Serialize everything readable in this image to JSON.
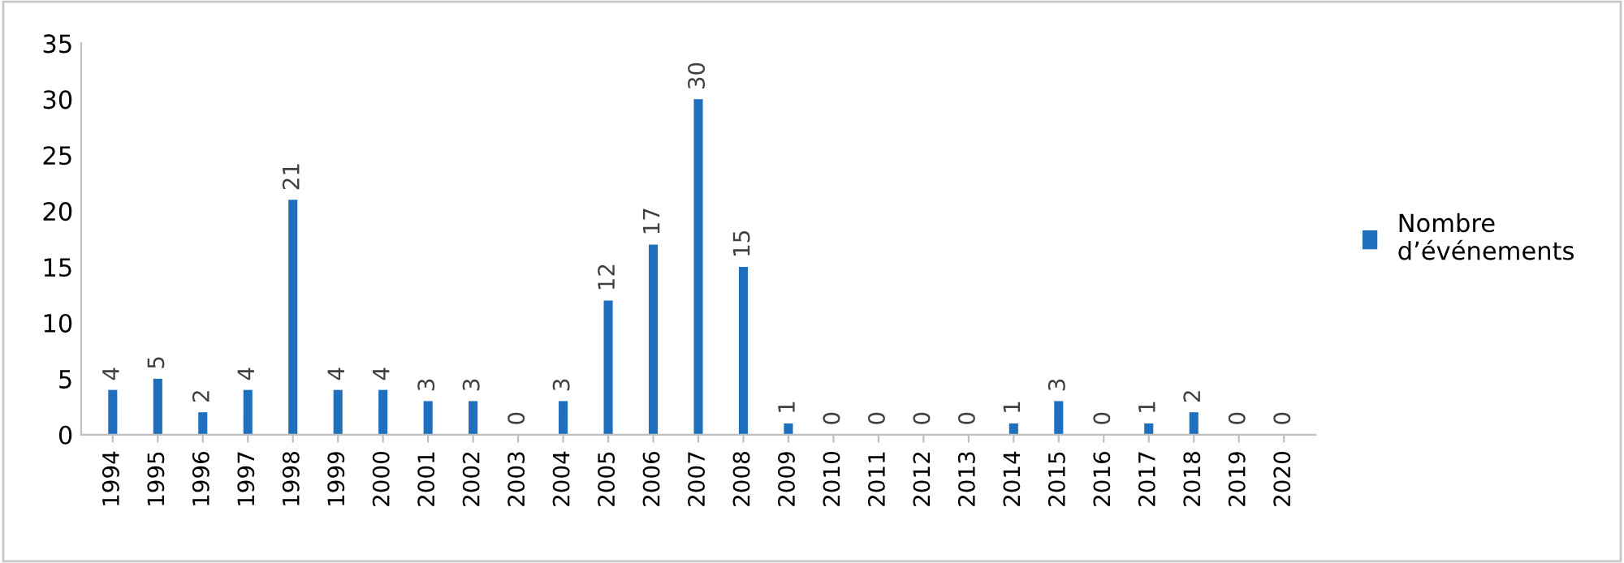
{
  "chart_data": {
    "type": "bar",
    "categories": [
      "1994",
      "1995",
      "1996",
      "1997",
      "1998",
      "1999",
      "2000",
      "2001",
      "2002",
      "2003",
      "2004",
      "2005",
      "2006",
      "2007",
      "2008",
      "2009",
      "2010",
      "2011",
      "2012",
      "2013",
      "2014",
      "2015",
      "2016",
      "2017",
      "2018",
      "2019",
      "2020"
    ],
    "series": [
      {
        "name": "Nombre d’événements",
        "color": "#1f6fbf",
        "values": [
          4,
          5,
          2,
          4,
          21,
          4,
          4,
          3,
          3,
          0,
          3,
          12,
          17,
          30,
          15,
          1,
          0,
          0,
          0,
          0,
          1,
          3,
          0,
          1,
          2,
          0,
          0
        ]
      }
    ],
    "ylim": [
      0,
      35
    ],
    "yticks": [
      0,
      5,
      10,
      15,
      20,
      25,
      30,
      35
    ],
    "data_labels": true,
    "grid": false,
    "legend": "right"
  }
}
